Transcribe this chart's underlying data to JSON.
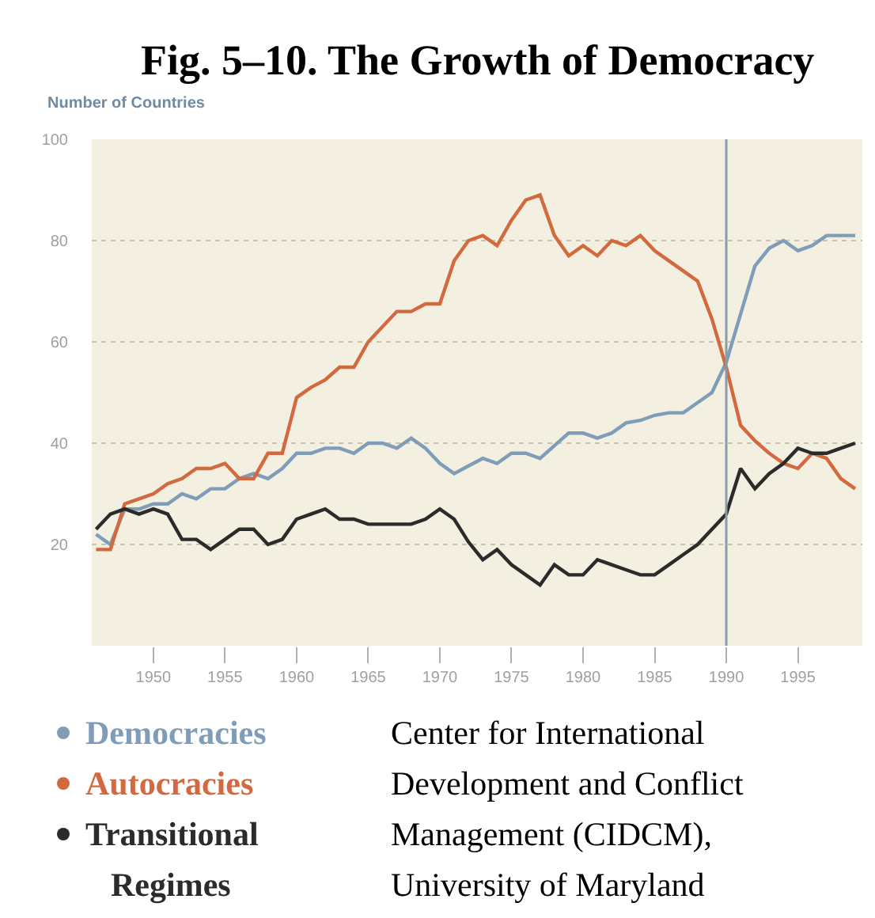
{
  "chart_data": {
    "type": "line",
    "title": "Fig. 5–10. The Growth of Democracy",
    "ylabel": "Number of Countries",
    "x": [
      1946,
      1947,
      1948,
      1949,
      1950,
      1951,
      1952,
      1953,
      1954,
      1955,
      1956,
      1957,
      1958,
      1959,
      1960,
      1961,
      1962,
      1963,
      1964,
      1965,
      1966,
      1967,
      1968,
      1969,
      1970,
      1971,
      1972,
      1973,
      1974,
      1975,
      1976,
      1977,
      1978,
      1979,
      1980,
      1981,
      1982,
      1983,
      1984,
      1985,
      1986,
      1987,
      1988,
      1989,
      1990,
      1991,
      1992,
      1993,
      1994,
      1995,
      1996,
      1997,
      1998,
      1999
    ],
    "series": [
      {
        "name": "Democracies",
        "color": "#7f9db8",
        "values": [
          22,
          20,
          27,
          27,
          28,
          28,
          30,
          29,
          31,
          31,
          33,
          34,
          33,
          35,
          38,
          38,
          39,
          39,
          38,
          40,
          40,
          39,
          41,
          39,
          36,
          34,
          35.5,
          37,
          36,
          38,
          38,
          37,
          39.5,
          42,
          42,
          41,
          42,
          44,
          44.5,
          45.5,
          46,
          46,
          48,
          50,
          56,
          65.5,
          75,
          78.5,
          80,
          78,
          79,
          81,
          81,
          81
        ]
      },
      {
        "name": "Autocracies",
        "color": "#d2693f",
        "values": [
          19,
          19,
          28,
          29,
          30,
          32,
          33,
          35,
          35,
          36,
          33,
          33,
          38,
          38,
          49,
          51,
          52.5,
          55,
          55,
          60,
          63,
          66,
          66,
          67.5,
          67.5,
          76,
          80,
          81,
          79,
          84,
          88,
          89,
          81,
          77,
          79,
          77,
          80,
          79,
          81,
          78,
          76,
          74,
          72,
          64.5,
          55,
          43.5,
          40.5,
          38,
          36,
          35,
          38,
          37,
          33,
          31
        ]
      },
      {
        "name": "Transitional Regimes",
        "color": "#2b2b2b",
        "values": [
          23,
          26,
          27,
          26,
          27,
          26,
          21,
          21,
          19,
          21,
          23,
          23,
          20,
          21,
          25,
          26,
          27,
          25,
          25,
          24,
          24,
          24,
          24,
          25,
          27,
          25,
          20.5,
          17,
          19,
          16,
          14,
          12,
          16,
          14,
          14,
          17,
          16,
          15,
          14,
          14,
          16,
          18,
          20,
          23,
          26,
          35,
          31,
          34,
          36,
          39,
          38,
          38,
          39,
          40
        ]
      }
    ],
    "xlim": [
      1945.7,
      1999.5
    ],
    "ylim": [
      0,
      100
    ],
    "xticks": [
      1950,
      1955,
      1960,
      1965,
      1970,
      1975,
      1980,
      1985,
      1990,
      1995
    ],
    "yticks": [
      20,
      40,
      60,
      80,
      100
    ],
    "grid": "y",
    "legend": "bottom",
    "marker": "none",
    "line_style": "solid",
    "ref_lines": [
      {
        "axis": "x",
        "value": 1990,
        "color": "#8a9aa6"
      }
    ],
    "annotations": [
      "Center for International Development and Conflict Management (CIDCM), University of Maryland"
    ]
  }
}
